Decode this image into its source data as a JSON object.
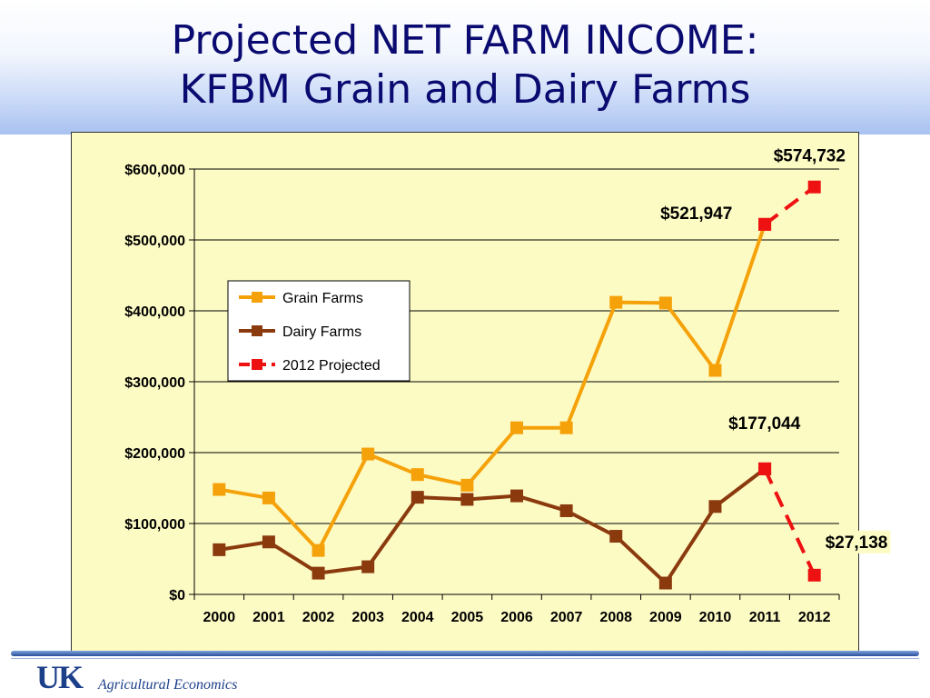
{
  "slide": {
    "title_line1": "Projected NET FARM INCOME:",
    "title_line2": "KFBM Grain and Dairy Farms",
    "logo_text": "UK",
    "footer_text": "Agricultural Economics"
  },
  "colors": {
    "grain": "#F5A20A",
    "dairy": "#8B3A0E",
    "projected": "#EE1111",
    "panel_bg": "#FDFBC4"
  },
  "chart_data": {
    "type": "line",
    "title": "",
    "xlabel": "",
    "ylabel": "",
    "categories": [
      "2000",
      "2001",
      "2002",
      "2003",
      "2004",
      "2005",
      "2006",
      "2007",
      "2008",
      "2009",
      "2010",
      "2011",
      "2012"
    ],
    "ylim": [
      0,
      600000
    ],
    "yticks": [
      0,
      100000,
      200000,
      300000,
      400000,
      500000,
      600000
    ],
    "ytick_labels": [
      "$0",
      "$100,000",
      "$200,000",
      "$300,000",
      "$400,000",
      "$500,000",
      "$600,000"
    ],
    "grid": true,
    "legend_position": "middle-left",
    "series": [
      {
        "name": "Grain Farms",
        "values": [
          148000,
          136000,
          62000,
          198000,
          169000,
          154000,
          235000,
          235000,
          412000,
          411000,
          316000,
          521947,
          null
        ]
      },
      {
        "name": "Dairy Farms",
        "values": [
          63000,
          74000,
          30000,
          39000,
          137000,
          134000,
          139000,
          118000,
          82000,
          16000,
          124000,
          177044,
          null
        ]
      },
      {
        "name": "2012 Projected",
        "values": [
          null,
          null,
          null,
          null,
          null,
          null,
          null,
          null,
          null,
          null,
          null,
          521947,
          574732
        ],
        "values_dairy": [
          null,
          null,
          null,
          null,
          null,
          null,
          null,
          null,
          null,
          null,
          null,
          177044,
          27138
        ]
      }
    ],
    "annotations": [
      {
        "text": "$574,732",
        "category": "2012",
        "value": 574732
      },
      {
        "text": "$521,947",
        "category": "2011",
        "value": 521947
      },
      {
        "text": "$177,044",
        "category": "2011",
        "value": 177044
      },
      {
        "text": "$27,138",
        "category": "2012",
        "value": 27138
      }
    ]
  }
}
